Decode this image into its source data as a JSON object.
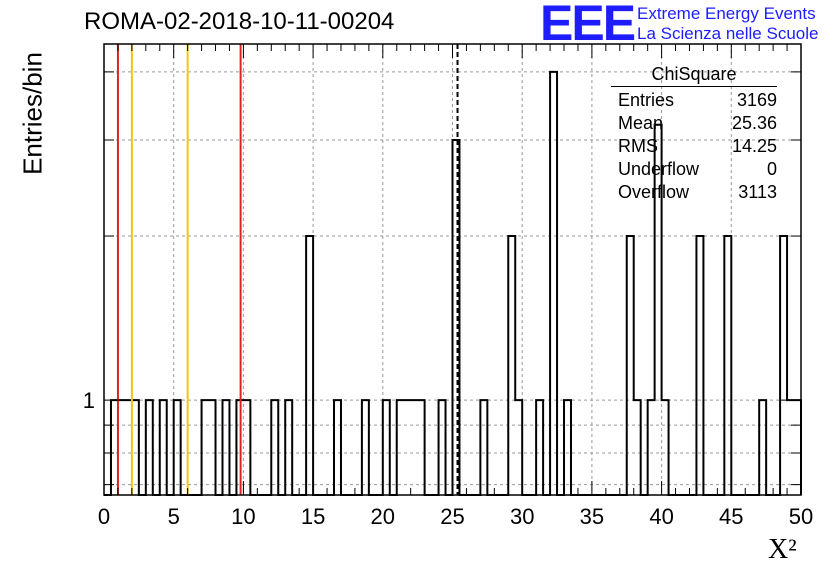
{
  "header": {
    "title": "ROMA-02-2018-10-11-00204",
    "logo_mark": "EEE",
    "logo_line1": "Extreme Energy Events",
    "logo_line2": "La Scienza nelle Scuole"
  },
  "stats": {
    "name": "ChiSquare",
    "rows": [
      {
        "label": "Entries",
        "value": "3169"
      },
      {
        "label": "Mean",
        "value": "25.36"
      },
      {
        "label": "RMS",
        "value": "14.25"
      },
      {
        "label": "Underflow",
        "value": "0"
      },
      {
        "label": "Overflow",
        "value": "3113"
      }
    ]
  },
  "colors": {
    "red": "#dd2222",
    "gold": "#f0c419",
    "grid": "#9a9a9a"
  },
  "chart_data": {
    "type": "histogram",
    "title": "ROMA-02-2018-10-11-00204",
    "xlabel": "X²",
    "ylabel": "Entries/bin",
    "xlim": [
      0,
      50
    ],
    "ylim": [
      0.67,
      4.5
    ],
    "yscale": "log",
    "bin_width": 0.5,
    "xticks": [
      "0",
      "5",
      "10",
      "15",
      "20",
      "25",
      "30",
      "35",
      "40",
      "45",
      "50"
    ],
    "yticks": [
      "1"
    ],
    "grid": true,
    "bins": [
      {
        "x": 0.5,
        "y": 1
      },
      {
        "x": 1,
        "y": 1
      },
      {
        "x": 1.5,
        "y": 1
      },
      {
        "x": 2,
        "y": 1
      },
      {
        "x": 3,
        "y": 1
      },
      {
        "x": 4,
        "y": 1
      },
      {
        "x": 5,
        "y": 1
      },
      {
        "x": 7,
        "y": 1
      },
      {
        "x": 7.5,
        "y": 1
      },
      {
        "x": 8.5,
        "y": 1
      },
      {
        "x": 9.5,
        "y": 1
      },
      {
        "x": 10,
        "y": 1
      },
      {
        "x": 12,
        "y": 1
      },
      {
        "x": 13,
        "y": 1
      },
      {
        "x": 14.5,
        "y": 2
      },
      {
        "x": 16.5,
        "y": 1
      },
      {
        "x": 18.5,
        "y": 1
      },
      {
        "x": 20,
        "y": 1
      },
      {
        "x": 21,
        "y": 1
      },
      {
        "x": 21.5,
        "y": 1
      },
      {
        "x": 22,
        "y": 1
      },
      {
        "x": 22.5,
        "y": 1
      },
      {
        "x": 24,
        "y": 1
      },
      {
        "x": 25,
        "y": 3
      },
      {
        "x": 27,
        "y": 1
      },
      {
        "x": 29,
        "y": 2
      },
      {
        "x": 29.5,
        "y": 1
      },
      {
        "x": 31,
        "y": 1
      },
      {
        "x": 32,
        "y": 4
      },
      {
        "x": 33,
        "y": 1
      },
      {
        "x": 37.5,
        "y": 2
      },
      {
        "x": 38,
        "y": 1
      },
      {
        "x": 39,
        "y": 1
      },
      {
        "x": 39.5,
        "y": 3.2
      },
      {
        "x": 40,
        "y": 1
      },
      {
        "x": 42.5,
        "y": 2
      },
      {
        "x": 44.5,
        "y": 2
      },
      {
        "x": 47,
        "y": 1
      },
      {
        "x": 48.5,
        "y": 2
      },
      {
        "x": 49,
        "y": 1
      },
      {
        "x": 49.5,
        "y": 1
      }
    ],
    "vlines": [
      {
        "x": 1,
        "color": "red"
      },
      {
        "x": 9.8,
        "color": "red"
      },
      {
        "x": 2,
        "color": "gold"
      },
      {
        "x": 6,
        "color": "gold"
      },
      {
        "x": 25.36,
        "color": "black-dashed"
      }
    ]
  }
}
